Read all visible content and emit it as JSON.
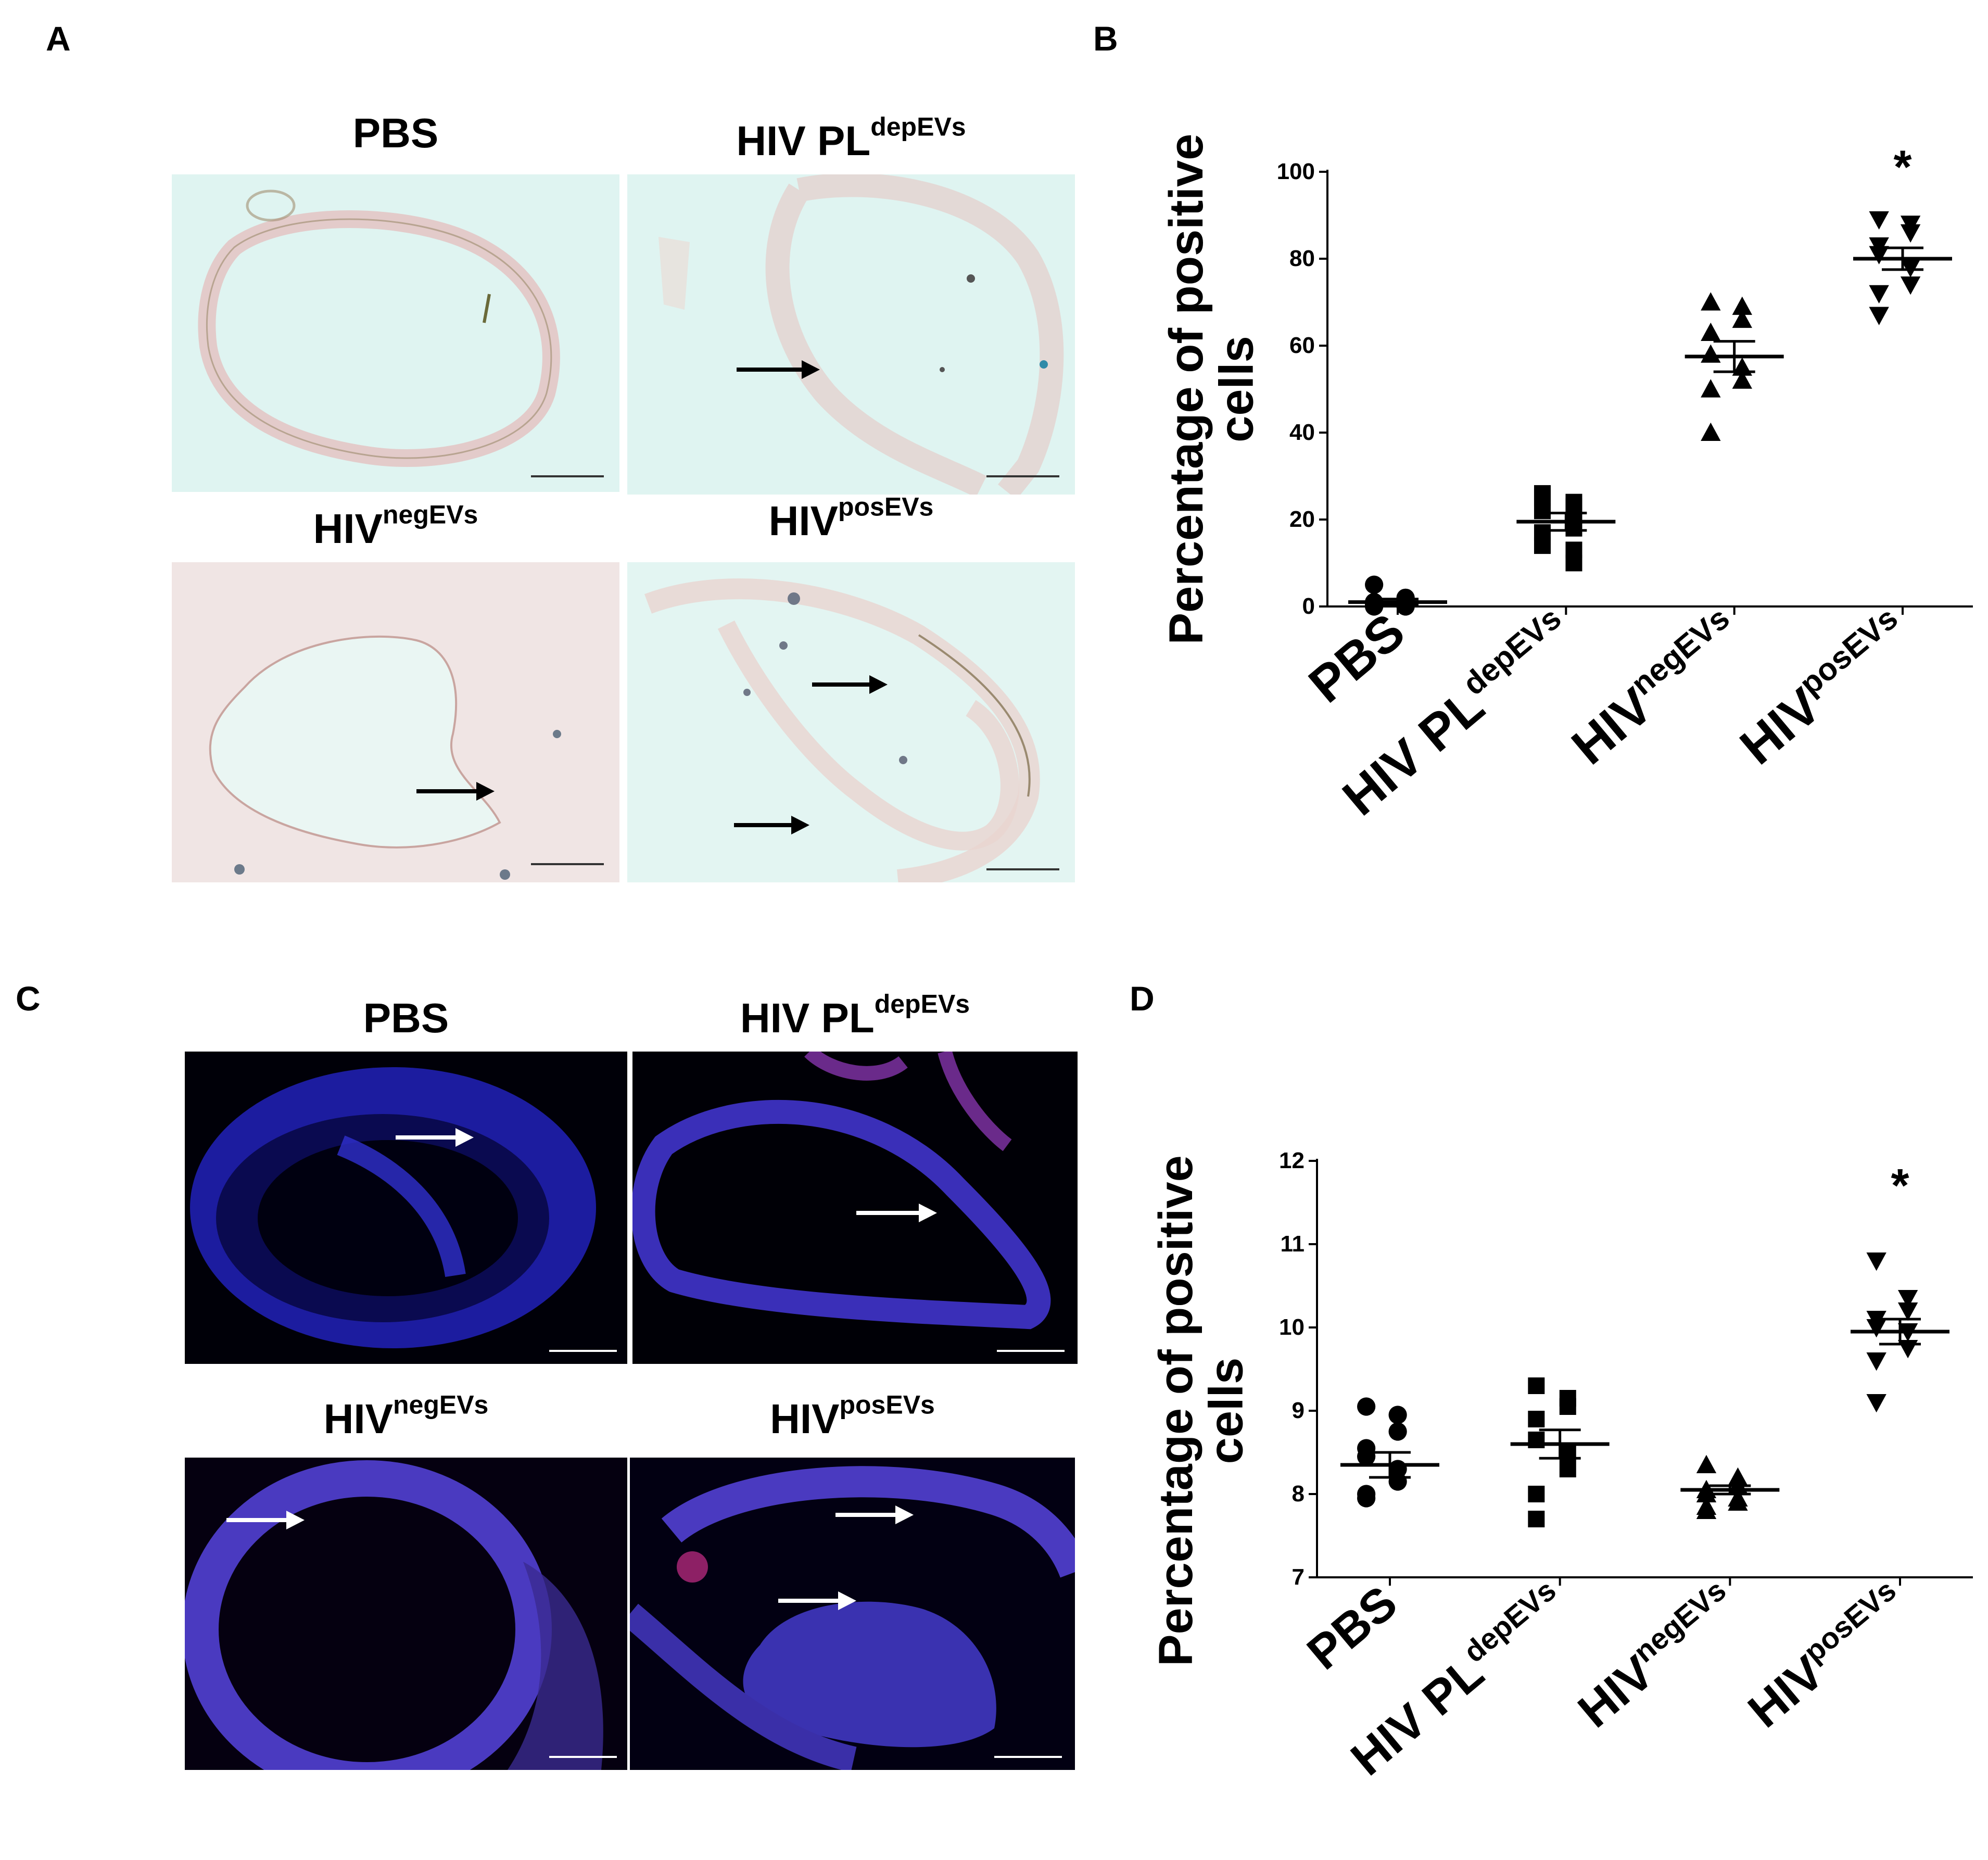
{
  "figure": {
    "panel_a": {
      "letter": "A",
      "images": [
        {
          "title": "PBS",
          "sup": "",
          "arrows": 0
        },
        {
          "title": "HIV PL",
          "sup": "depEVs",
          "arrows": 1
        },
        {
          "title": "HIV",
          "sup": "negEVs",
          "arrows": 1
        },
        {
          "title": "HIV",
          "sup": "posEVs",
          "arrows": 2
        }
      ]
    },
    "panel_c": {
      "letter": "C",
      "images": [
        {
          "title": "PBS",
          "sup": "",
          "arrows": 1
        },
        {
          "title": "HIV PL",
          "sup": "depEVs",
          "arrows": 1
        },
        {
          "title": "HIV",
          "sup": "negEVs",
          "arrows": 1
        },
        {
          "title": "HIV",
          "sup": "posEVs",
          "arrows": 2
        }
      ]
    },
    "panel_b": {
      "letter": "B"
    },
    "panel_d": {
      "letter": "D"
    }
  },
  "chart_data": [
    {
      "type": "scatter",
      "panel": "B",
      "ylabel_line1": "Percentage of positive",
      "ylabel_line2": "cells",
      "ylim": [
        0,
        100
      ],
      "yticks": [
        "0",
        "20",
        "40",
        "60",
        "80",
        "100"
      ],
      "categories": [
        {
          "label": "PBS",
          "sup": ""
        },
        {
          "label": "HIV PL",
          "sup": "depEVs"
        },
        {
          "label": "HIV",
          "sup": "negEVs"
        },
        {
          "label": "HIV",
          "sup": "posEVs"
        }
      ],
      "series": [
        {
          "marker": "circle",
          "mean": 1,
          "sem": 0.7,
          "values": [
            5,
            2,
            1,
            0.5,
            0,
            0.5,
            0,
            1
          ]
        },
        {
          "marker": "square",
          "mean": 19.5,
          "sem": 2,
          "values": [
            26,
            24,
            23,
            25,
            22,
            20,
            18,
            17,
            14,
            13,
            10
          ]
        },
        {
          "marker": "triangle-up",
          "mean": 57.5,
          "sem": 3.5,
          "values": [
            70,
            69,
            66,
            63,
            58,
            55,
            52,
            50,
            40
          ]
        },
        {
          "marker": "triangle-down",
          "mean": 80,
          "sem": 2.5,
          "values": [
            89,
            88,
            86,
            83,
            81,
            78,
            74,
            72,
            67
          ]
        }
      ],
      "annotations": [
        {
          "category_index": 3,
          "text": "*",
          "y": 101
        }
      ]
    },
    {
      "type": "scatter",
      "panel": "D",
      "ylabel_line1": "Percentage of positive",
      "ylabel_line2": "cells",
      "ylim": [
        7,
        12
      ],
      "yticks": [
        "7",
        "8",
        "9",
        "10",
        "11",
        "12"
      ],
      "categories": [
        {
          "label": "PBS",
          "sup": ""
        },
        {
          "label": "HIV PL",
          "sup": "depEVs"
        },
        {
          "label": "HIV",
          "sup": "negEVs"
        },
        {
          "label": "HIV",
          "sup": "posEVs"
        }
      ],
      "series": [
        {
          "marker": "circle",
          "mean": 8.35,
          "sem": 0.15,
          "values": [
            9.05,
            8.95,
            8.75,
            8.55,
            8.45,
            8.3,
            8.15,
            8.0,
            7.95
          ]
        },
        {
          "marker": "square",
          "mean": 8.6,
          "sem": 0.17,
          "values": [
            9.3,
            9.15,
            9.05,
            8.9,
            8.65,
            8.5,
            8.3,
            8.0,
            7.7
          ]
        },
        {
          "marker": "triangle-up",
          "mean": 8.05,
          "sem": 0.05,
          "values": [
            8.35,
            8.2,
            8.1,
            8.05,
            8.0,
            7.95,
            7.9,
            7.85,
            7.8
          ]
        },
        {
          "marker": "triangle-down",
          "mean": 9.95,
          "sem": 0.15,
          "values": [
            10.8,
            10.35,
            10.2,
            10.1,
            10.0,
            9.95,
            9.75,
            9.6,
            9.1
          ]
        }
      ],
      "annotations": [
        {
          "category_index": 3,
          "text": "*",
          "y": 11.7
        }
      ]
    }
  ]
}
